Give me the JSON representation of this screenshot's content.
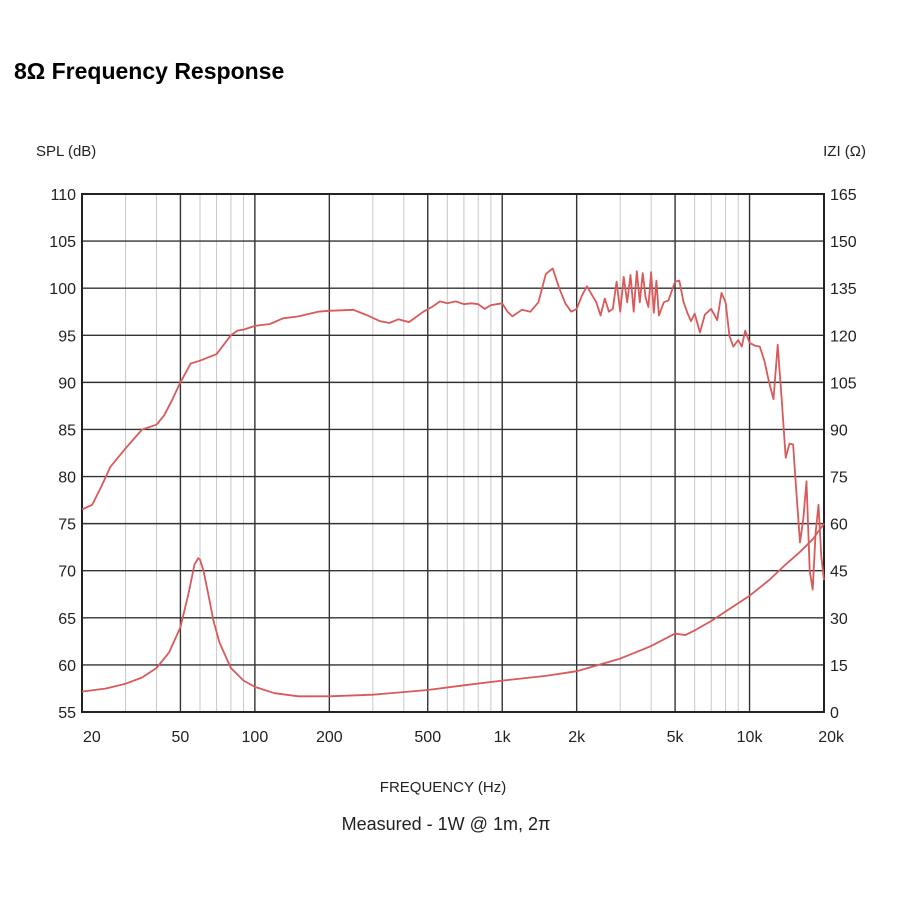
{
  "title": "8Ω Frequency Response",
  "chart_data": {
    "type": "line",
    "title": "8Ω Frequency Response",
    "ylabel_left": "SPL (dB)",
    "ylabel_right": "IZI (Ω)",
    "xlabel": "FREQUENCY (Hz)",
    "caption": "Measured - 1W @ 1m, 2π",
    "x_scale": "log",
    "xlim": [
      20,
      20000
    ],
    "ylim_left": [
      55,
      110
    ],
    "ylim_right": [
      0,
      165
    ],
    "grid": true,
    "x_ticks": [
      {
        "value": 20,
        "label": "20"
      },
      {
        "value": 50,
        "label": "50"
      },
      {
        "value": 100,
        "label": "100"
      },
      {
        "value": 200,
        "label": "200"
      },
      {
        "value": 500,
        "label": "500"
      },
      {
        "value": 1000,
        "label": "1k"
      },
      {
        "value": 2000,
        "label": "2k"
      },
      {
        "value": 5000,
        "label": "5k"
      },
      {
        "value": 10000,
        "label": "10k"
      },
      {
        "value": 20000,
        "label": "20k"
      }
    ],
    "y_ticks_left": [
      "55",
      "60",
      "65",
      "70",
      "75",
      "80",
      "85",
      "90",
      "95",
      "100",
      "105",
      "110"
    ],
    "y_ticks_right": [
      "0",
      "15",
      "30",
      "45",
      "60",
      "75",
      "90",
      "105",
      "120",
      "135",
      "150",
      "165"
    ],
    "line_color": "#d85a5a",
    "series": [
      {
        "name": "SPL (dB)",
        "axis": "left",
        "x": [
          20,
          22,
          24,
          26,
          30,
          35,
          40,
          43,
          46,
          50,
          55,
          60,
          70,
          80,
          85,
          90,
          100,
          115,
          130,
          150,
          180,
          200,
          250,
          280,
          320,
          350,
          380,
          420,
          480,
          520,
          560,
          600,
          650,
          700,
          750,
          800,
          850,
          900,
          950,
          1000,
          1050,
          1100,
          1200,
          1300,
          1400,
          1500,
          1600,
          1700,
          1800,
          1900,
          2000,
          2100,
          2200,
          2400,
          2500,
          2600,
          2700,
          2800,
          2900,
          3000,
          3100,
          3200,
          3300,
          3400,
          3500,
          3600,
          3700,
          3800,
          3900,
          4000,
          4100,
          4200,
          4300,
          4500,
          4700,
          5000,
          5200,
          5400,
          5600,
          5800,
          6000,
          6300,
          6600,
          7000,
          7400,
          7700,
          8000,
          8300,
          8600,
          9000,
          9300,
          9600,
          10000,
          10500,
          11000,
          11500,
          12000,
          12500,
          13000,
          13500,
          14000,
          14500,
          15000,
          15500,
          16000,
          16500,
          17000,
          17500,
          18000,
          18500,
          19000,
          19500,
          20000
        ],
        "y": [
          76.5,
          77,
          79,
          81,
          83,
          85,
          85.5,
          86.5,
          88,
          90,
          92,
          92.3,
          93,
          95,
          95.5,
          95.6,
          96,
          96.2,
          96.8,
          97,
          97.5,
          97.6,
          97.7,
          97.2,
          96.5,
          96.3,
          96.7,
          96.4,
          97.5,
          98,
          98.6,
          98.4,
          98.6,
          98.3,
          98.4,
          98.3,
          97.8,
          98.2,
          98.3,
          98.4,
          97.5,
          97.0,
          97.7,
          97.5,
          98.5,
          101.5,
          102.1,
          100.0,
          98.4,
          97.5,
          97.8,
          99.2,
          100.2,
          98.5,
          97.1,
          98.9,
          97.5,
          97.8,
          100.7,
          97.5,
          101.2,
          98.5,
          101.4,
          97.5,
          101.8,
          98.5,
          101.6,
          99.0,
          98.0,
          101.7,
          97.4,
          100.8,
          97.1,
          98.5,
          98.7,
          100.7,
          100.8,
          98.6,
          97.4,
          96.5,
          97.3,
          95.3,
          97.2,
          97.8,
          96.6,
          99.5,
          98.5,
          94.9,
          93.8,
          94.5,
          93.8,
          95.5,
          94.2,
          93.9,
          93.8,
          92.2,
          90.0,
          88.2,
          94.0,
          88.0,
          82.0,
          83.5,
          83.4,
          78.0,
          73.0,
          75.5,
          79.5,
          70.0,
          68.0,
          74.0,
          77.0,
          71.5,
          69.0
        ]
      },
      {
        "name": "IZI (Ω)",
        "axis": "right",
        "x": [
          20,
          25,
          30,
          35,
          40,
          45,
          50,
          54,
          57,
          59,
          60,
          62,
          65,
          68,
          72,
          80,
          90,
          100,
          120,
          150,
          200,
          300,
          500,
          700,
          1000,
          1500,
          2000,
          3000,
          4000,
          5000,
          5500,
          6000,
          7000,
          8000,
          10000,
          12000,
          14000,
          16000,
          18000,
          20000
        ],
        "y": [
          6.5,
          7.5,
          9,
          11,
          14,
          19,
          27,
          38,
          47,
          49,
          48.5,
          45,
          37,
          29,
          22,
          14,
          10,
          8,
          6,
          5,
          5,
          5.5,
          7,
          8.5,
          10,
          11.5,
          13,
          17,
          21,
          25,
          24.5,
          26,
          29,
          32,
          37,
          42,
          47,
          51,
          55,
          60
        ]
      }
    ]
  }
}
